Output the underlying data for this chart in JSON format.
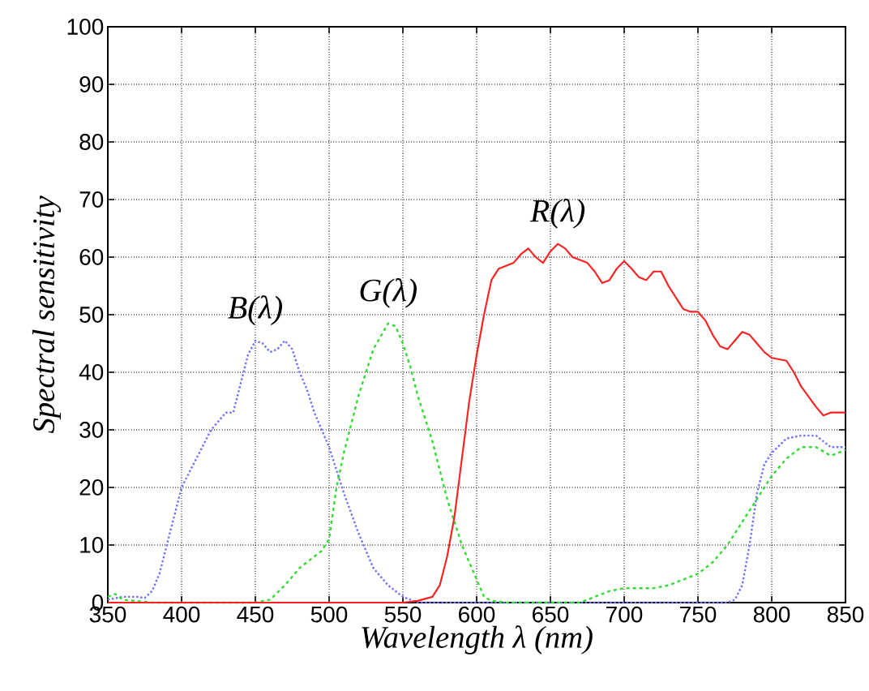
{
  "chart_data": {
    "type": "line",
    "xlabel": "Wavelength λ (nm)",
    "ylabel": "Spectral sensitivity",
    "xlim": [
      350,
      850
    ],
    "ylim": [
      0,
      100
    ],
    "xticks": [
      350,
      400,
      450,
      500,
      550,
      600,
      650,
      700,
      750,
      800,
      850
    ],
    "yticks": [
      0,
      10,
      20,
      30,
      40,
      50,
      60,
      70,
      80,
      90,
      100
    ],
    "grid": true,
    "legend": false,
    "marker": "none",
    "series": [
      {
        "name": "B(λ)",
        "color": "#7070ff",
        "line_style": "dotted",
        "x": [
          350,
          360,
          370,
          375,
          380,
          385,
          390,
          395,
          400,
          410,
          420,
          430,
          435,
          440,
          445,
          450,
          455,
          460,
          465,
          470,
          475,
          480,
          485,
          490,
          495,
          500,
          505,
          510,
          520,
          530,
          540,
          550,
          555,
          560,
          600,
          700,
          770,
          775,
          780,
          785,
          790,
          795,
          800,
          810,
          820,
          830,
          840,
          850
        ],
        "values": [
          0.5,
          1,
          1,
          0.8,
          2,
          5,
          10,
          15,
          20,
          25,
          30,
          33,
          33,
          38,
          43,
          45.5,
          45,
          43.5,
          44,
          45.5,
          44,
          40,
          37,
          33,
          30,
          27,
          23,
          19,
          12,
          6,
          3,
          1,
          0.5,
          0,
          0,
          0,
          0,
          0.5,
          3,
          10,
          19,
          24,
          26,
          28.5,
          29,
          29,
          27,
          27
        ]
      },
      {
        "name": "G(λ)",
        "color": "#33dd33",
        "line_style": "dashed",
        "x": [
          350,
          355,
          360,
          380,
          400,
          450,
          460,
          470,
          480,
          490,
          495,
          500,
          505,
          510,
          520,
          530,
          540,
          545,
          550,
          555,
          560,
          570,
          580,
          590,
          600,
          605,
          610,
          620,
          650,
          670,
          680,
          690,
          700,
          720,
          730,
          750,
          760,
          770,
          780,
          790,
          800,
          810,
          820,
          830,
          840,
          850
        ],
        "values": [
          1,
          1.5,
          0.5,
          0,
          0,
          0,
          0.5,
          3,
          6,
          8,
          9,
          11,
          20,
          26,
          36,
          44,
          48.5,
          48,
          45,
          41,
          36,
          28,
          18,
          10,
          4,
          1,
          0.3,
          0,
          0,
          0,
          1,
          2,
          2.5,
          2.5,
          3,
          5,
          7,
          10,
          14,
          18,
          22,
          25,
          27,
          27,
          25.5,
          26.5
        ]
      },
      {
        "name": "R(λ)",
        "color": "#ff2020",
        "line_style": "solid",
        "x": [
          350,
          500,
          550,
          560,
          570,
          575,
          580,
          585,
          590,
          595,
          600,
          605,
          610,
          615,
          620,
          625,
          630,
          635,
          640,
          645,
          650,
          655,
          660,
          665,
          670,
          675,
          680,
          685,
          690,
          695,
          700,
          705,
          710,
          715,
          720,
          725,
          730,
          740,
          745,
          750,
          755,
          760,
          765,
          770,
          775,
          780,
          785,
          790,
          795,
          800,
          810,
          815,
          820,
          830,
          835,
          840,
          850
        ],
        "values": [
          0,
          0,
          0,
          0.3,
          1,
          3,
          8,
          15,
          25,
          35,
          43,
          50,
          56,
          58,
          58.5,
          59,
          60.5,
          61.5,
          60,
          59,
          61,
          62.3,
          61.5,
          60,
          59.5,
          59,
          57.5,
          55.5,
          56,
          58,
          59.3,
          58,
          56.5,
          56,
          57.5,
          57.5,
          55,
          51,
          50.5,
          50.5,
          49,
          46.5,
          44.5,
          44,
          45.5,
          47,
          46.5,
          45,
          43.5,
          42.5,
          42,
          40,
          37.5,
          34,
          32.5,
          33,
          33
        ]
      }
    ]
  }
}
